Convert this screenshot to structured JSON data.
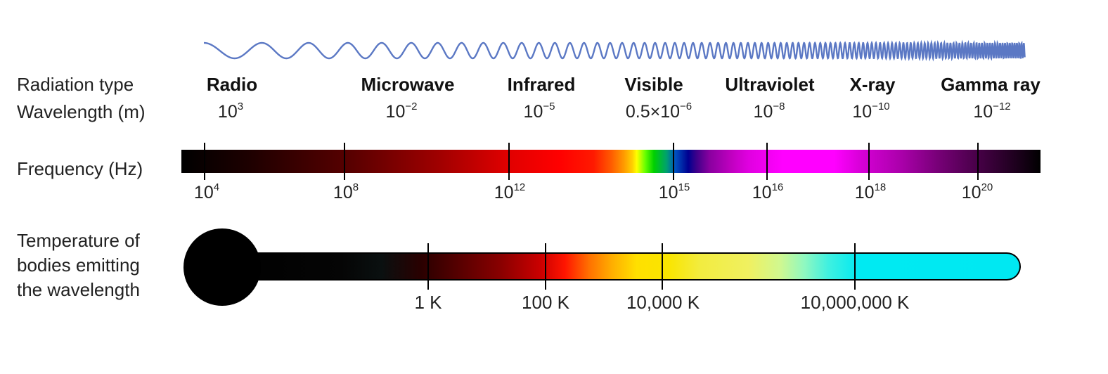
{
  "row_labels": {
    "radiation_type": "Radiation type",
    "wavelength": "Wavelength (m)",
    "frequency": "Frequency (Hz)",
    "temperature": [
      "Temperature of",
      "bodies emitting",
      "the wavelength"
    ]
  },
  "radiation_types": [
    "Radio",
    "Microwave",
    "Infrared",
    "Visible",
    "Ultraviolet",
    "X-ray",
    "Gamma ray"
  ],
  "wavelengths": [
    {
      "base": "10",
      "exp": "3"
    },
    {
      "base": "10",
      "exp": "−2"
    },
    {
      "base": "10",
      "exp": "−5"
    },
    {
      "base": "0.5×10",
      "exp": "−6"
    },
    {
      "base": "10",
      "exp": "−8"
    },
    {
      "base": "10",
      "exp": "−10"
    },
    {
      "base": "10",
      "exp": "−12"
    }
  ],
  "frequencies": [
    {
      "base": "10",
      "exp": "4"
    },
    {
      "base": "10",
      "exp": "8"
    },
    {
      "base": "10",
      "exp": "12"
    },
    {
      "base": "10",
      "exp": "15"
    },
    {
      "base": "10",
      "exp": "16"
    },
    {
      "base": "10",
      "exp": "18"
    },
    {
      "base": "10",
      "exp": "20"
    }
  ],
  "temperatures": [
    "1 K",
    "100 K",
    "10,000 K",
    "10,000,000 K"
  ],
  "colors": {
    "wave": "#5b78c4",
    "text": "#111111",
    "temperature_end": "#00e8f2"
  }
}
